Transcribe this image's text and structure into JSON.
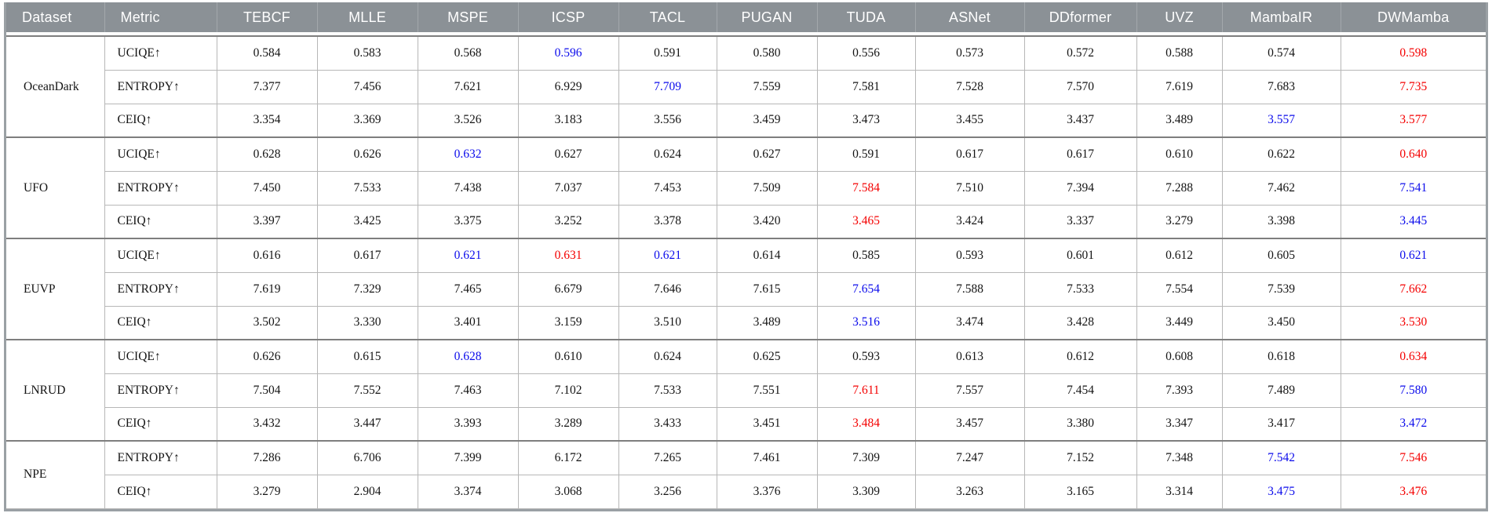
{
  "colors": {
    "header_bg": "#8b9196",
    "header_text": "#ffffff",
    "best": "#f40000",
    "second": "#0b0beb",
    "body_text": "#141414"
  },
  "table": {
    "columns": [
      "Dataset",
      "Metric",
      "TEBCF",
      "MLLE",
      "MSPE",
      "ICSP",
      "TACL",
      "PUGAN",
      "TUDA",
      "ASNet",
      "DDformer",
      "UVZ",
      "MambaIR",
      "DWMamba"
    ],
    "groups": [
      {
        "dataset": "OceanDark",
        "rows": [
          {
            "metric": "UCIQE↑",
            "values": [
              "0.584",
              "0.583",
              "0.568",
              "0.596",
              "0.591",
              "0.580",
              "0.556",
              "0.573",
              "0.572",
              "0.588",
              "0.574",
              "0.598"
            ],
            "marks": [
              "",
              "",
              "",
              "b",
              "",
              "",
              "",
              "",
              "",
              "",
              "",
              "r"
            ]
          },
          {
            "metric": "ENTROPY↑",
            "values": [
              "7.377",
              "7.456",
              "7.621",
              "6.929",
              "7.709",
              "7.559",
              "7.581",
              "7.528",
              "7.570",
              "7.619",
              "7.683",
              "7.735"
            ],
            "marks": [
              "",
              "",
              "",
              "",
              "b",
              "",
              "",
              "",
              "",
              "",
              "",
              "r"
            ]
          },
          {
            "metric": "CEIQ↑",
            "values": [
              "3.354",
              "3.369",
              "3.526",
              "3.183",
              "3.556",
              "3.459",
              "3.473",
              "3.455",
              "3.437",
              "3.489",
              "3.557",
              "3.577"
            ],
            "marks": [
              "",
              "",
              "",
              "",
              "",
              "",
              "",
              "",
              "",
              "",
              "b",
              "r"
            ]
          }
        ]
      },
      {
        "dataset": "UFO",
        "rows": [
          {
            "metric": "UCIQE↑",
            "values": [
              "0.628",
              "0.626",
              "0.632",
              "0.627",
              "0.624",
              "0.627",
              "0.591",
              "0.617",
              "0.617",
              "0.610",
              "0.622",
              "0.640"
            ],
            "marks": [
              "",
              "",
              "b",
              "",
              "",
              "",
              "",
              "",
              "",
              "",
              "",
              "r"
            ]
          },
          {
            "metric": "ENTROPY↑",
            "values": [
              "7.450",
              "7.533",
              "7.438",
              "7.037",
              "7.453",
              "7.509",
              "7.584",
              "7.510",
              "7.394",
              "7.288",
              "7.462",
              "7.541"
            ],
            "marks": [
              "",
              "",
              "",
              "",
              "",
              "",
              "r",
              "",
              "",
              "",
              "",
              "b"
            ]
          },
          {
            "metric": "CEIQ↑",
            "values": [
              "3.397",
              "3.425",
              "3.375",
              "3.252",
              "3.378",
              "3.420",
              "3.465",
              "3.424",
              "3.337",
              "3.279",
              "3.398",
              "3.445"
            ],
            "marks": [
              "",
              "",
              "",
              "",
              "",
              "",
              "r",
              "",
              "",
              "",
              "",
              "b"
            ]
          }
        ]
      },
      {
        "dataset": "EUVP",
        "rows": [
          {
            "metric": "UCIQE↑",
            "values": [
              "0.616",
              "0.617",
              "0.621",
              "0.631",
              "0.621",
              "0.614",
              "0.585",
              "0.593",
              "0.601",
              "0.612",
              "0.605",
              "0.621"
            ],
            "marks": [
              "",
              "",
              "b",
              "r",
              "b",
              "",
              "",
              "",
              "",
              "",
              "",
              "b"
            ]
          },
          {
            "metric": "ENTROPY↑",
            "values": [
              "7.619",
              "7.329",
              "7.465",
              "6.679",
              "7.646",
              "7.615",
              "7.654",
              "7.588",
              "7.533",
              "7.554",
              "7.539",
              "7.662"
            ],
            "marks": [
              "",
              "",
              "",
              "",
              "",
              "",
              "b",
              "",
              "",
              "",
              "",
              "r"
            ]
          },
          {
            "metric": "CEIQ↑",
            "values": [
              "3.502",
              "3.330",
              "3.401",
              "3.159",
              "3.510",
              "3.489",
              "3.516",
              "3.474",
              "3.428",
              "3.449",
              "3.450",
              "3.530"
            ],
            "marks": [
              "",
              "",
              "",
              "",
              "",
              "",
              "b",
              "",
              "",
              "",
              "",
              "r"
            ]
          }
        ]
      },
      {
        "dataset": "LNRUD",
        "rows": [
          {
            "metric": "UCIQE↑",
            "values": [
              "0.626",
              "0.615",
              "0.628",
              "0.610",
              "0.624",
              "0.625",
              "0.593",
              "0.613",
              "0.612",
              "0.608",
              "0.618",
              "0.634"
            ],
            "marks": [
              "",
              "",
              "b",
              "",
              "",
              "",
              "",
              "",
              "",
              "",
              "",
              "r"
            ]
          },
          {
            "metric": "ENTROPY↑",
            "values": [
              "7.504",
              "7.552",
              "7.463",
              "7.102",
              "7.533",
              "7.551",
              "7.611",
              "7.557",
              "7.454",
              "7.393",
              "7.489",
              "7.580"
            ],
            "marks": [
              "",
              "",
              "",
              "",
              "",
              "",
              "r",
              "",
              "",
              "",
              "",
              "b"
            ]
          },
          {
            "metric": "CEIQ↑",
            "values": [
              "3.432",
              "3.447",
              "3.393",
              "3.289",
              "3.433",
              "3.451",
              "3.484",
              "3.457",
              "3.380",
              "3.347",
              "3.417",
              "3.472"
            ],
            "marks": [
              "",
              "",
              "",
              "",
              "",
              "",
              "r",
              "",
              "",
              "",
              "",
              "b"
            ]
          }
        ]
      },
      {
        "dataset": "NPE",
        "rows": [
          {
            "metric": "ENTROPY↑",
            "values": [
              "7.286",
              "6.706",
              "7.399",
              "6.172",
              "7.265",
              "7.461",
              "7.309",
              "7.247",
              "7.152",
              "7.348",
              "7.542",
              "7.546"
            ],
            "marks": [
              "",
              "",
              "",
              "",
              "",
              "",
              "",
              "",
              "",
              "",
              "b",
              "r"
            ]
          },
          {
            "metric": "CEIQ↑",
            "values": [
              "3.279",
              "2.904",
              "3.374",
              "3.068",
              "3.256",
              "3.376",
              "3.309",
              "3.263",
              "3.165",
              "3.314",
              "3.475",
              "3.476"
            ],
            "marks": [
              "",
              "",
              "",
              "",
              "",
              "",
              "",
              "",
              "",
              "",
              "b",
              "r"
            ]
          }
        ]
      }
    ]
  }
}
